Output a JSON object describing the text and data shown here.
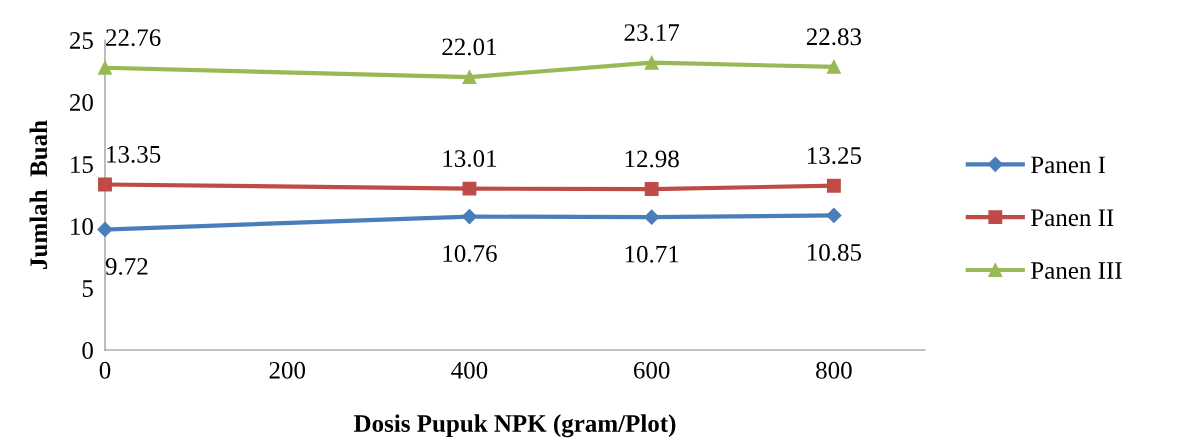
{
  "chart_data": {
    "type": "line",
    "xlabel": "Dosis Pupuk NPK (gram/Plot)",
    "ylabel": "Jumlah  Buah",
    "x": [
      0,
      400,
      600,
      800
    ],
    "series": [
      {
        "name": "Panen I",
        "color": "#4a7ebb",
        "marker": "diamond",
        "values": [
          9.72,
          10.76,
          10.71,
          10.85
        ]
      },
      {
        "name": "Panen II",
        "color": "#be4b48",
        "marker": "square",
        "values": [
          13.35,
          13.01,
          12.98,
          13.25
        ]
      },
      {
        "name": "Panen III",
        "color": "#98b954",
        "marker": "triangle",
        "values": [
          22.76,
          22.01,
          23.17,
          22.83
        ]
      }
    ],
    "xlim": [
      0,
      900
    ],
    "xticks": [
      0,
      200,
      400,
      600,
      800
    ],
    "ylim": [
      0,
      25
    ],
    "yticks": [
      0,
      5,
      10,
      15,
      20,
      25
    ],
    "grid": false,
    "legend": "right",
    "data_labels": true,
    "line_style": "solid"
  }
}
